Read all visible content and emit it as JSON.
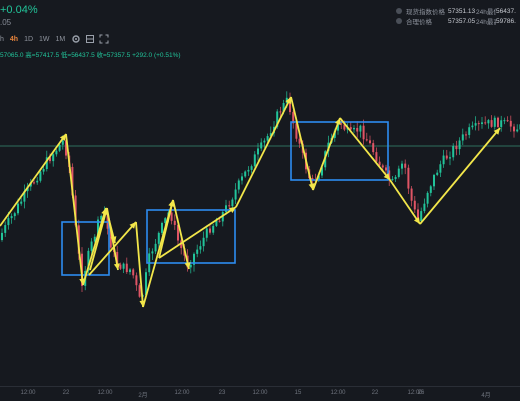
{
  "header": {
    "change_pct": "+0.04%",
    "sub_value": ".05",
    "ohlc": "57065.0 高=57417.5 低=56437.5 收=57357.5 +292.0 (+0.51%)"
  },
  "toolbar": {
    "timeframes": [
      {
        "label": "h",
        "active": false
      },
      {
        "label": "4h",
        "active": true
      },
      {
        "label": "1D",
        "active": false
      },
      {
        "label": "1W",
        "active": false
      },
      {
        "label": "1M",
        "active": false
      }
    ],
    "icons": [
      "settings-icon",
      "layers-icon",
      "fullscreen-icon"
    ]
  },
  "stats": [
    {
      "label": "现货指数价格",
      "value": "57351.13",
      "label2": "24h最低",
      "value2": "56437."
    },
    {
      "label": "合理价格",
      "value": "57357.05",
      "label2": "24h最高",
      "value2": "59786."
    }
  ],
  "xaxis": {
    "ticks": [
      {
        "label": "12:00",
        "at": 28
      },
      {
        "label": "22",
        "at": 66
      },
      {
        "label": "12:00",
        "at": 105
      },
      {
        "label": "2月",
        "at": 143
      },
      {
        "label": "12:00",
        "at": 182
      },
      {
        "label": "23",
        "at": 222
      },
      {
        "label": "12:00",
        "at": 260
      },
      {
        "label": "15",
        "at": 298
      },
      {
        "label": "12:00",
        "at": 338
      },
      {
        "label": "22",
        "at": 375
      },
      {
        "label": "12:00",
        "at": 415
      },
      {
        "label": "26",
        "at": 421
      },
      {
        "label": "4月",
        "at": 486
      }
    ]
  },
  "colors": {
    "up": "#22c49a",
    "down": "#e05565",
    "box": "#2d8cf0",
    "trend": "#f2e64a",
    "hline": "#2f6e5c"
  }
}
